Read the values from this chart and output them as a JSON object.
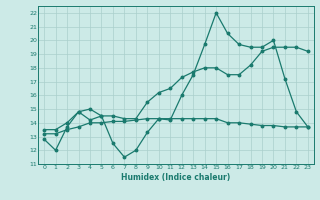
{
  "line1_x": [
    0,
    1,
    2,
    3,
    4,
    5,
    6,
    7,
    8,
    9,
    10,
    11,
    12,
    13,
    14,
    15,
    16,
    17,
    18,
    19,
    20,
    21,
    22,
    23
  ],
  "line1_y": [
    12.8,
    12.0,
    13.7,
    14.8,
    14.2,
    14.5,
    12.5,
    11.5,
    12.0,
    13.3,
    14.3,
    14.2,
    16.0,
    17.5,
    19.7,
    22.0,
    20.5,
    19.7,
    19.5,
    19.5,
    20.0,
    17.2,
    14.8,
    13.7
  ],
  "line2_x": [
    0,
    1,
    2,
    3,
    4,
    5,
    6,
    7,
    8,
    9,
    10,
    11,
    12,
    13,
    14,
    15,
    16,
    17,
    18,
    19,
    20,
    21,
    22,
    23
  ],
  "line2_y": [
    13.5,
    13.5,
    14.0,
    14.8,
    15.0,
    14.5,
    14.5,
    14.3,
    14.3,
    15.5,
    16.2,
    16.5,
    17.3,
    17.7,
    18.0,
    18.0,
    17.5,
    17.5,
    18.2,
    19.2,
    19.5,
    19.5,
    19.5,
    19.2
  ],
  "line3_x": [
    0,
    1,
    2,
    3,
    4,
    5,
    6,
    7,
    8,
    9,
    10,
    11,
    12,
    13,
    14,
    15,
    16,
    17,
    18,
    19,
    20,
    21,
    22,
    23
  ],
  "line3_y": [
    13.2,
    13.2,
    13.5,
    13.7,
    14.0,
    14.0,
    14.1,
    14.1,
    14.2,
    14.3,
    14.3,
    14.3,
    14.3,
    14.3,
    14.3,
    14.3,
    14.0,
    14.0,
    13.9,
    13.8,
    13.8,
    13.7,
    13.7,
    13.7
  ],
  "line_color": "#1a7a6e",
  "bg_color": "#cceae7",
  "grid_color": "#aacfcc",
  "xlabel": "Humidex (Indice chaleur)",
  "xlim": [
    -0.5,
    23.5
  ],
  "ylim": [
    11,
    22.5
  ],
  "yticks": [
    11,
    12,
    13,
    14,
    15,
    16,
    17,
    18,
    19,
    20,
    21,
    22
  ],
  "xticks": [
    0,
    1,
    2,
    3,
    4,
    5,
    6,
    7,
    8,
    9,
    10,
    11,
    12,
    13,
    14,
    15,
    16,
    17,
    18,
    19,
    20,
    21,
    22,
    23
  ],
  "marker_size": 1.8,
  "line_width": 0.9
}
